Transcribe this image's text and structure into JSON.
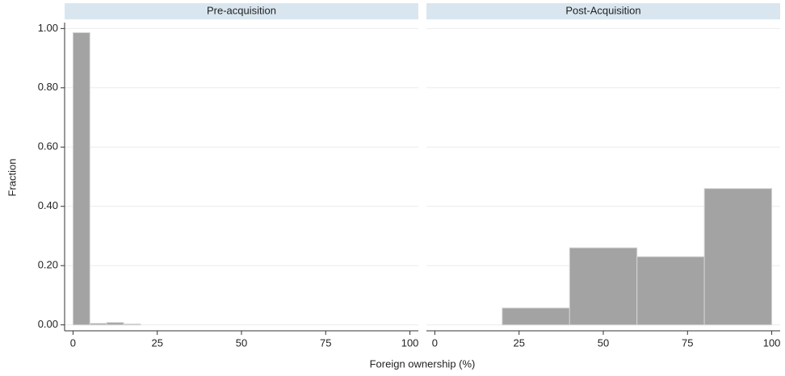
{
  "ylabel": "Fraction",
  "xlabel": "Foreign ownership (%)",
  "grid": true,
  "ylim": [
    -0.02,
    1.02
  ],
  "yticks": [
    {
      "value": 0,
      "label": "0.00"
    },
    {
      "value": 0.2,
      "label": "0.20"
    },
    {
      "value": 0.4,
      "label": "0.40"
    },
    {
      "value": 0.6,
      "label": "0.60"
    },
    {
      "value": 0.8,
      "label": "0.80"
    },
    {
      "value": 1,
      "label": "1.00"
    }
  ],
  "chart_data": [
    {
      "type": "histogram",
      "title": "Pre-acquisition",
      "color": "#a3a3a3",
      "bins": [
        0,
        5,
        10,
        15,
        20
      ],
      "values": [
        0.986,
        0.005,
        0.008,
        0.003
      ],
      "xlim": [
        -2.5,
        102.5
      ],
      "xticks": [
        0,
        25,
        50,
        75,
        100
      ]
    },
    {
      "type": "histogram",
      "title": "Post-Acquisition",
      "color": "#a3a3a3",
      "bins": [
        20,
        40,
        60,
        80,
        100
      ],
      "values": [
        0.057,
        0.26,
        0.23,
        0.46
      ],
      "xlim": [
        -2.5,
        102.5
      ],
      "xticks": [
        0,
        25,
        50,
        75,
        100
      ]
    }
  ]
}
